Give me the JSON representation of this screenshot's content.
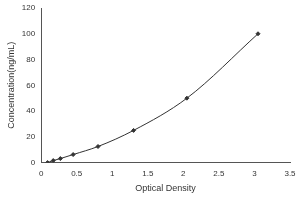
{
  "chart_data": {
    "type": "scatter",
    "x_label": "Optical Density",
    "y_label": "Concentration(ng/mL)",
    "x": [
      0.09,
      0.17,
      0.27,
      0.45,
      0.8,
      1.3,
      2.05,
      3.05
    ],
    "values": [
      0,
      1.56,
      3.12,
      6.25,
      12.5,
      25,
      50,
      100
    ],
    "color": "#333333",
    "marker": "diamond",
    "line_style": "solid",
    "xlim": [
      0,
      3.5
    ],
    "xticks": [
      0,
      0.5,
      1,
      1.5,
      2,
      2.5,
      3,
      3.5
    ],
    "ylim": [
      0,
      120
    ],
    "yticks": [
      0,
      20,
      40,
      60,
      80,
      100,
      120
    ],
    "grid": false
  }
}
